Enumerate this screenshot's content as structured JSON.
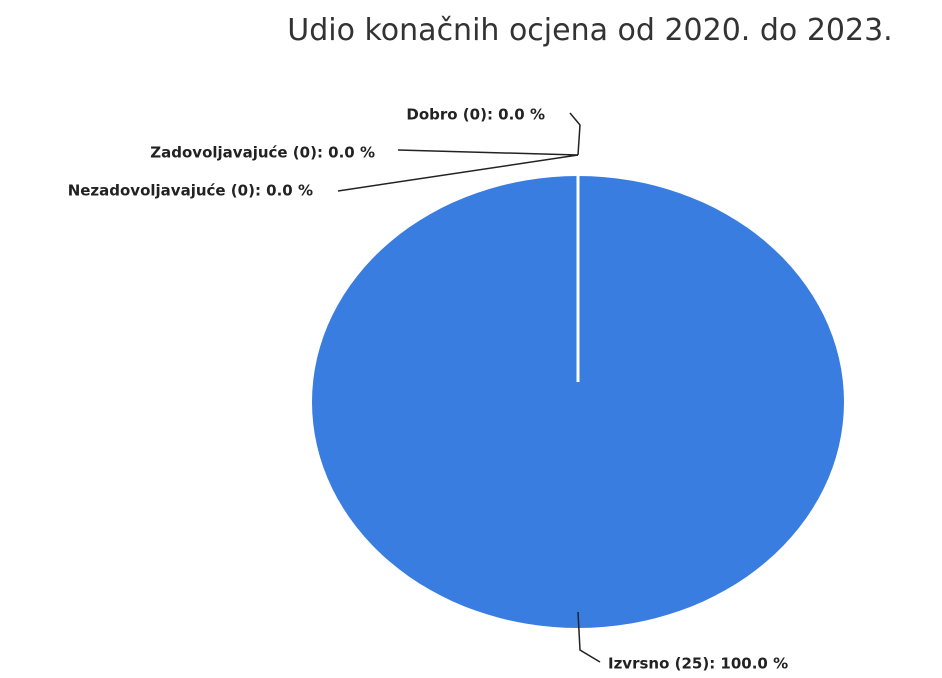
{
  "chart_data": {
    "type": "pie",
    "title": "Udio konačnih ocjena od 2020. do 2023.",
    "values": [
      0,
      0,
      0,
      100
    ],
    "counts": [
      0,
      0,
      0,
      25
    ],
    "value_labels": [
      "Nezadovoljavajuće (0): 0.0 %",
      "Zadovoljavajuće (0): 0.0 %",
      "Dobro (0): 0.0 %",
      "Izvrsno (25): 100.0 %"
    ],
    "color": "#3a7de0"
  }
}
